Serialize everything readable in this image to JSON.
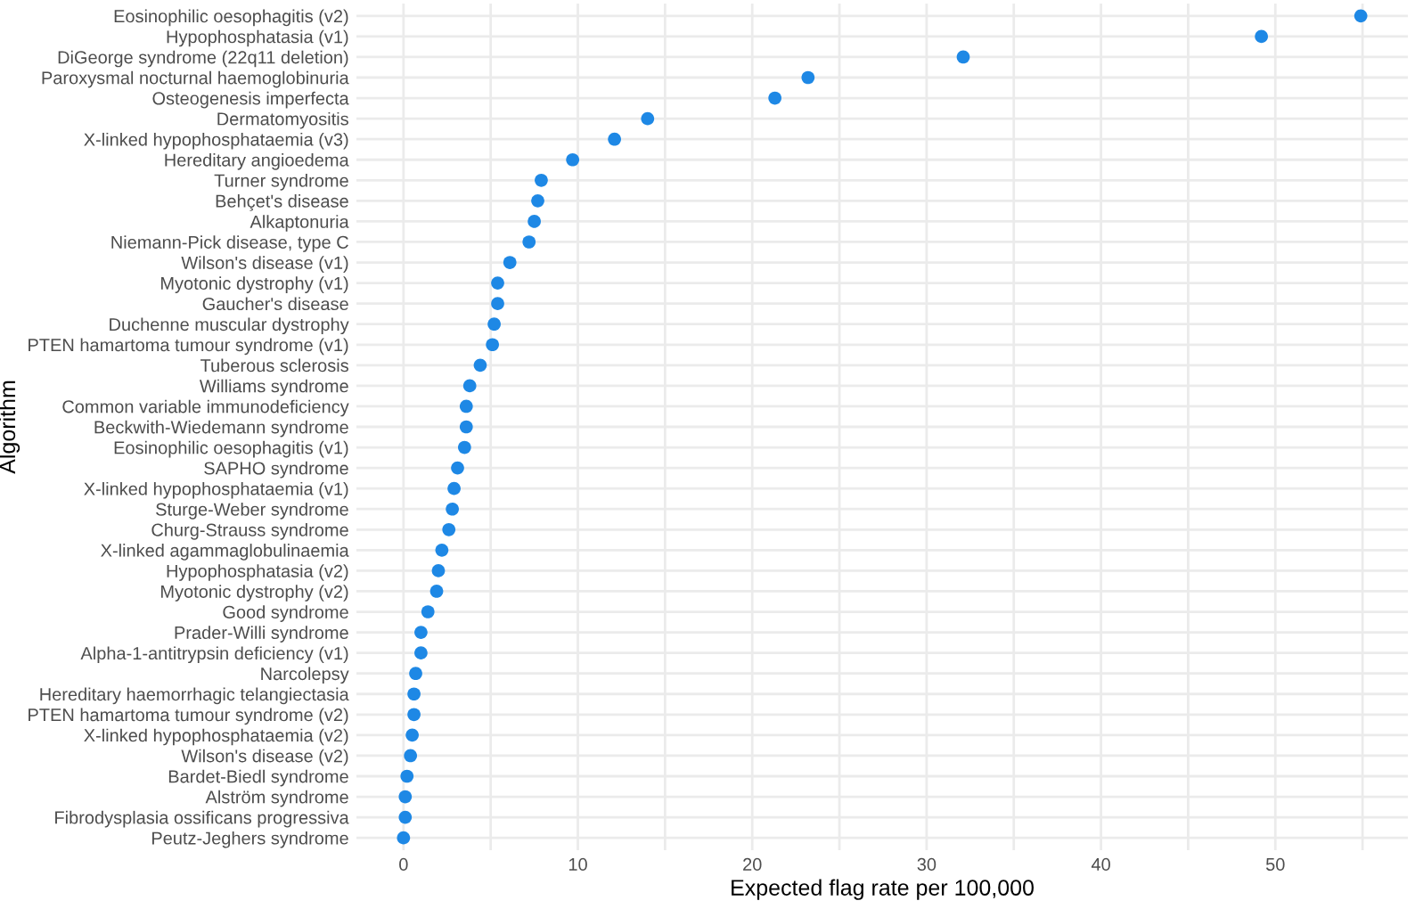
{
  "chart_data": {
    "type": "scatter",
    "xlabel": "Expected flag rate per 100,000",
    "ylabel": "Algorithm",
    "categories": [
      "Eosinophilic oesophagitis (v2)",
      "Hypophosphatasia (v1)",
      "DiGeorge syndrome (22q11 deletion)",
      "Paroxysmal nocturnal haemoglobinuria",
      "Osteogenesis imperfecta",
      "Dermatomyositis",
      "X-linked hypophosphataemia (v3)",
      "Hereditary angioedema",
      "Turner syndrome",
      "Behçet's disease",
      "Alkaptonuria",
      "Niemann-Pick disease, type C",
      "Wilson's disease (v1)",
      "Myotonic dystrophy (v1)",
      "Gaucher's disease",
      "Duchenne muscular dystrophy",
      "PTEN hamartoma tumour syndrome (v1)",
      "Tuberous sclerosis",
      "Williams syndrome",
      "Common variable immunodeficiency",
      "Beckwith-Wiedemann syndrome",
      "Eosinophilic oesophagitis (v1)",
      "SAPHO syndrome",
      "X-linked hypophosphataemia (v1)",
      "Sturge-Weber syndrome",
      "Churg-Strauss syndrome",
      "X-linked agammaglobulinaemia",
      "Hypophosphatasia (v2)",
      "Myotonic dystrophy (v2)",
      "Good syndrome",
      "Prader-Willi syndrome",
      "Alpha-1-antitrypsin deficiency (v1)",
      "Narcolepsy",
      "Hereditary haemorrhagic telangiectasia",
      "PTEN hamartoma tumour syndrome (v2)",
      "X-linked hypophosphataemia (v2)",
      "Wilson's disease (v2)",
      "Bardet-Biedl syndrome",
      "Alström syndrome",
      "Fibrodysplasia ossificans progressiva",
      "Peutz-Jeghers syndrome"
    ],
    "orientation": "horizontal",
    "values": [
      54.9,
      49.2,
      32.1,
      23.2,
      21.3,
      14.0,
      12.1,
      9.7,
      7.9,
      7.7,
      7.5,
      7.2,
      6.1,
      5.4,
      5.4,
      5.2,
      5.1,
      4.4,
      3.8,
      3.6,
      3.6,
      3.5,
      3.1,
      2.9,
      2.8,
      2.6,
      2.2,
      2.0,
      1.9,
      1.4,
      1.0,
      1.0,
      0.7,
      0.6,
      0.6,
      0.5,
      0.4,
      0.2,
      0.1,
      0.1,
      0.0
    ],
    "color": "#1e88e5",
    "marker": "circle",
    "xlim": [
      -2.7,
      57.6
    ],
    "xticks": [
      0,
      {
        "value": 5,
        "label": null
      },
      10,
      {
        "value": 15,
        "label": null
      },
      20,
      {
        "value": 25,
        "label": null
      },
      30,
      {
        "value": 35,
        "label": null
      },
      40,
      {
        "value": 45,
        "label": null
      },
      50,
      {
        "value": 55,
        "label": null
      }
    ],
    "grid": true,
    "legend": false
  }
}
